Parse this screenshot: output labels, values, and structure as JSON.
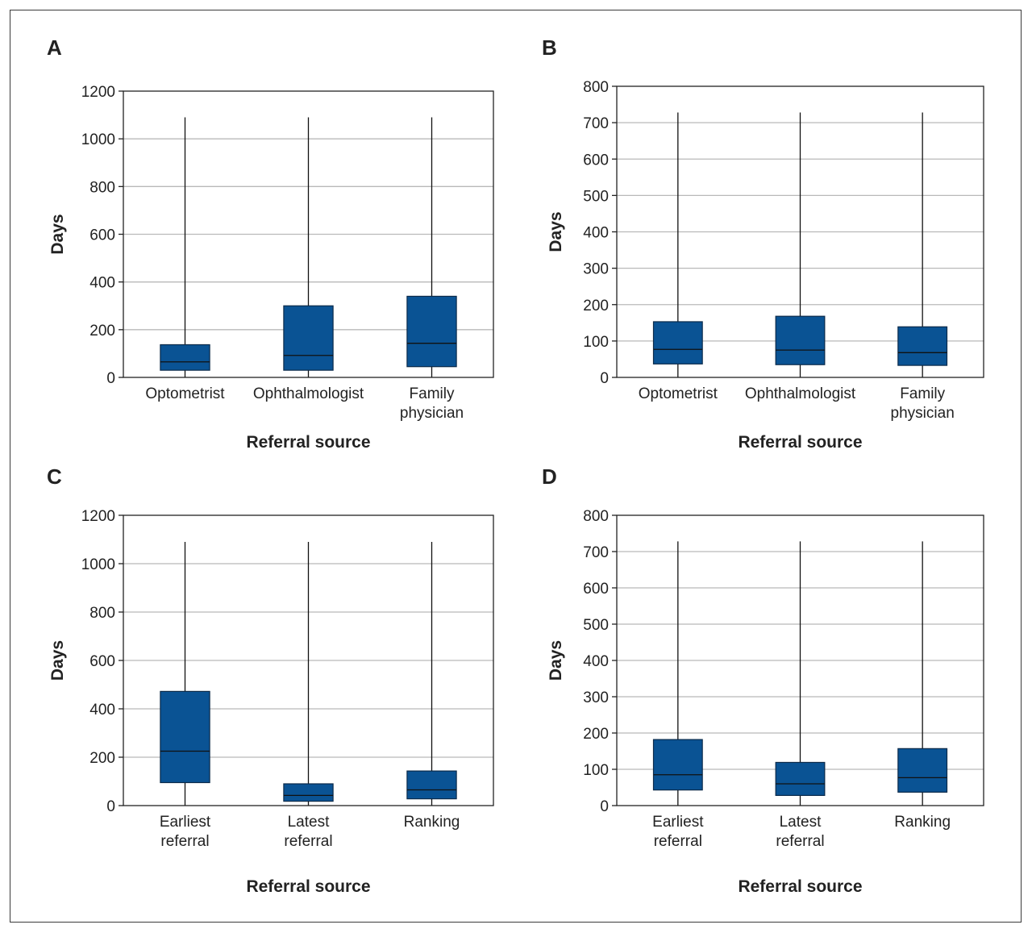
{
  "colors": {
    "box_fill": "#0a5394",
    "box_stroke": "#0b2a4a",
    "grid": "#b9b9b9",
    "axis": "#222222"
  },
  "chart_data": [
    {
      "panel": "A",
      "type": "box",
      "xlabel": "Referral source",
      "ylabel": "Days",
      "ylim": [
        0,
        1200
      ],
      "yticks": [
        0,
        200,
        400,
        600,
        800,
        1000,
        1200
      ],
      "grid": true,
      "categories": [
        [
          "Optometrist"
        ],
        [
          "Ophthalmologist"
        ],
        [
          "Family",
          "physician"
        ]
      ],
      "boxes": [
        {
          "min": 0,
          "q1": 30,
          "median": 65,
          "q3": 137,
          "max": 1090
        },
        {
          "min": 0,
          "q1": 30,
          "median": 92,
          "q3": 300,
          "max": 1090
        },
        {
          "min": 0,
          "q1": 45,
          "median": 143,
          "q3": 340,
          "max": 1090
        }
      ]
    },
    {
      "panel": "B",
      "type": "box",
      "xlabel": "Referral source",
      "ylabel": "Days",
      "ylim": [
        0,
        800
      ],
      "yticks": [
        0,
        100,
        200,
        300,
        400,
        500,
        600,
        700,
        800
      ],
      "grid": true,
      "categories": [
        [
          "Optometrist"
        ],
        [
          "Ophthalmologist"
        ],
        [
          "Family",
          "physician"
        ]
      ],
      "boxes": [
        {
          "min": 0,
          "q1": 37,
          "median": 77,
          "q3": 153,
          "max": 728
        },
        {
          "min": 0,
          "q1": 35,
          "median": 75,
          "q3": 168,
          "max": 728
        },
        {
          "min": 0,
          "q1": 33,
          "median": 68,
          "q3": 139,
          "max": 728
        }
      ]
    },
    {
      "panel": "C",
      "type": "box",
      "xlabel": "Referral source",
      "ylabel": "Days",
      "ylim": [
        0,
        1200
      ],
      "yticks": [
        0,
        200,
        400,
        600,
        800,
        1000,
        1200
      ],
      "grid": true,
      "categories": [
        [
          "Earliest",
          "referral"
        ],
        [
          "Latest",
          "referral"
        ],
        [
          "Ranking"
        ]
      ],
      "boxes": [
        {
          "min": 0,
          "q1": 95,
          "median": 225,
          "q3": 472,
          "max": 1090
        },
        {
          "min": 0,
          "q1": 18,
          "median": 42,
          "q3": 90,
          "max": 1090
        },
        {
          "min": 0,
          "q1": 28,
          "median": 65,
          "q3": 143,
          "max": 1090
        }
      ]
    },
    {
      "panel": "D",
      "type": "box",
      "xlabel": "Referral source",
      "ylabel": "Days",
      "ylim": [
        0,
        800
      ],
      "yticks": [
        0,
        100,
        200,
        300,
        400,
        500,
        600,
        700,
        800
      ],
      "grid": true,
      "categories": [
        [
          "Earliest",
          "referral"
        ],
        [
          "Latest",
          "referral"
        ],
        [
          "Ranking"
        ]
      ],
      "boxes": [
        {
          "min": 0,
          "q1": 43,
          "median": 85,
          "q3": 182,
          "max": 728
        },
        {
          "min": 0,
          "q1": 28,
          "median": 60,
          "q3": 119,
          "max": 728
        },
        {
          "min": 0,
          "q1": 37,
          "median": 77,
          "q3": 157,
          "max": 728
        }
      ]
    }
  ]
}
